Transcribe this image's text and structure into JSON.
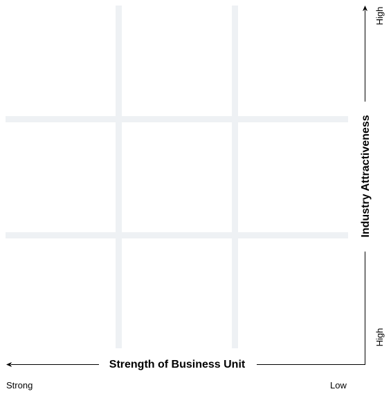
{
  "x_axis": {
    "title": "Strength of Business Unit",
    "left_label": "Strong",
    "right_label": "Low"
  },
  "y_axis": {
    "title": "Industry Attractiveness",
    "top_label": "High",
    "bottom_label": "High"
  },
  "colors": {
    "grid": "#eef1f4",
    "text": "#000000",
    "arrow": "#000000"
  }
}
